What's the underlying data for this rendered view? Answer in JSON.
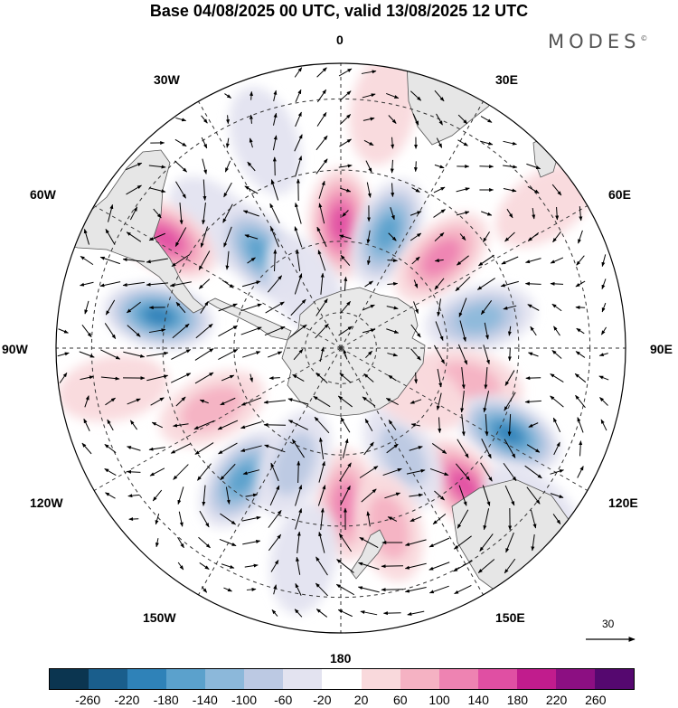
{
  "title": "Base 04/08/2025 00 UTC, valid 13/08/2025 12 UTC",
  "brand": "MODES",
  "brand_mark": "©",
  "longitude_labels": {
    "lon_0": "0",
    "lon_30e": "30E",
    "lon_60e": "60E",
    "lon_90e": "90E",
    "lon_120e": "120E",
    "lon_150e": "150E",
    "lon_180": "180",
    "lon_150w": "150W",
    "lon_120w": "120W",
    "lon_90w": "90W",
    "lon_60w": "60W",
    "lon_30w": "30W"
  },
  "reference_vector": "30",
  "colorbar": {
    "colors": [
      "#0b3550",
      "#1a5e8c",
      "#2f82b8",
      "#5ba1cc",
      "#8cb8da",
      "#bcc9e3",
      "#e3e3f0",
      "#ffffff",
      "#f9d9dc",
      "#f5b2c3",
      "#ee83b2",
      "#e04fa3",
      "#c11c8d",
      "#8c0f82",
      "#55086f"
    ],
    "tick_labels": [
      "-260",
      "-220",
      "-180",
      "-140",
      "-100",
      "-60",
      "-20",
      "20",
      "60",
      "100",
      "140",
      "180",
      "220",
      "260"
    ]
  },
  "anomalies": [
    {
      "lon": 10,
      "lat": -22,
      "value": 45
    },
    {
      "lon": -45,
      "lat": -40,
      "value": -60
    },
    {
      "lon": -58,
      "lat": -32,
      "value": 150
    },
    {
      "lon": -40,
      "lat": -55,
      "value": -160
    },
    {
      "lon": -80,
      "lat": -38,
      "value": -190
    },
    {
      "lon": 0,
      "lat": -55,
      "value": 170
    },
    {
      "lon": 22,
      "lat": -55,
      "value": -150
    },
    {
      "lon": 48,
      "lat": -52,
      "value": 120
    },
    {
      "lon": 78,
      "lat": -50,
      "value": -130
    },
    {
      "lon": 105,
      "lat": -53,
      "value": 80
    },
    {
      "lon": 117,
      "lat": -37,
      "value": -190
    },
    {
      "lon": 138,
      "lat": -38,
      "value": 175
    },
    {
      "lon": 150,
      "lat": -55,
      "value": -80
    },
    {
      "lon": 178,
      "lat": -46,
      "value": 110
    },
    {
      "lon": -143,
      "lat": -44,
      "value": -150
    },
    {
      "lon": -115,
      "lat": -50,
      "value": 85
    },
    {
      "lon": -158,
      "lat": -55,
      "value": -100
    },
    {
      "lon": 165,
      "lat": -38,
      "value": 75
    },
    {
      "lon": -170,
      "lat": -30,
      "value": -35
    },
    {
      "lon": 55,
      "lat": -20,
      "value": 45
    },
    {
      "lon": 130,
      "lat": -20,
      "value": -30
    },
    {
      "lon": -100,
      "lat": -25,
      "value": 45
    },
    {
      "lon": -20,
      "lat": -28,
      "value": -35
    },
    {
      "lon": 120,
      "lat": -66,
      "value": 45
    },
    {
      "lon": -30,
      "lat": -70,
      "value": -40
    }
  ]
}
